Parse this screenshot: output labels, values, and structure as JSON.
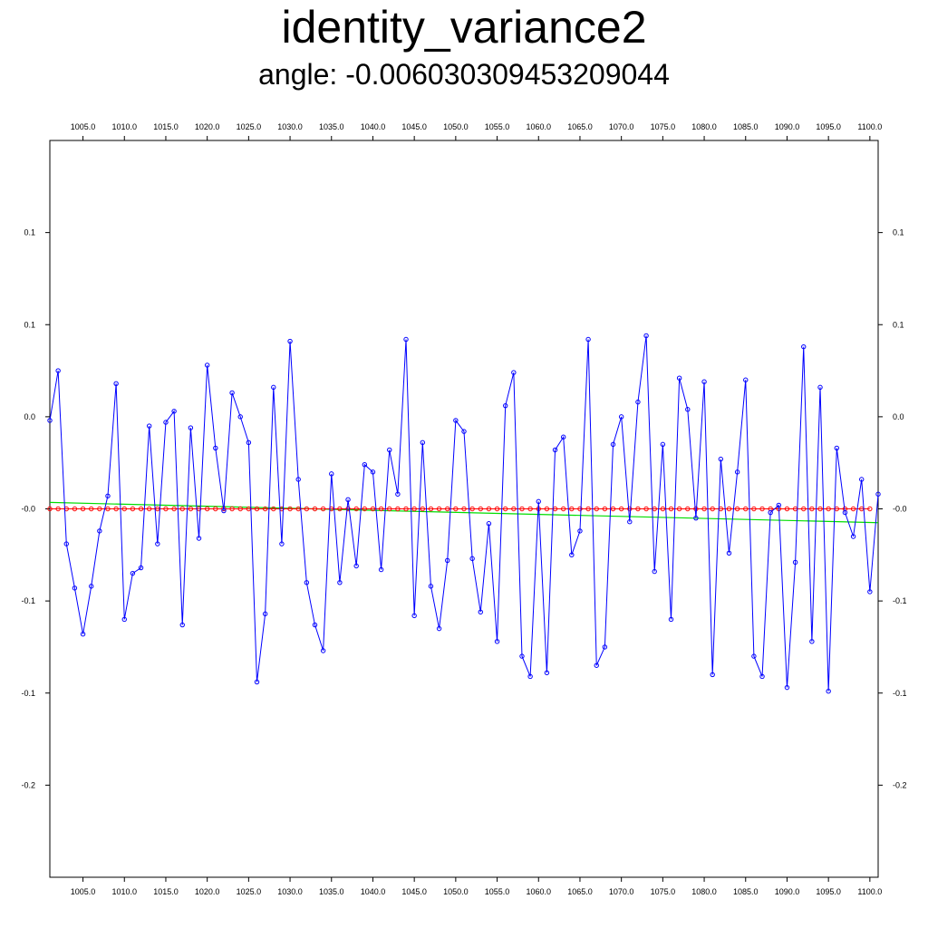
{
  "chart_data": {
    "type": "line",
    "title": "identity_variance2",
    "subtitle": "angle: -0.006030309453209044",
    "xlabel": "",
    "ylabel": "",
    "xlim": [
      1001,
      1101
    ],
    "ylim": [
      -0.25,
      0.15
    ],
    "x_ticks": [
      {
        "value": 1005,
        "label": "1005.0"
      },
      {
        "value": 1010,
        "label": "1010.0"
      },
      {
        "value": 1015,
        "label": "1015.0"
      },
      {
        "value": 1020,
        "label": "1020.0"
      },
      {
        "value": 1025,
        "label": "1025.0"
      },
      {
        "value": 1030,
        "label": "1030.0"
      },
      {
        "value": 1035,
        "label": "1035.0"
      },
      {
        "value": 1040,
        "label": "1040.0"
      },
      {
        "value": 1045,
        "label": "1045.0"
      },
      {
        "value": 1050,
        "label": "1050.0"
      },
      {
        "value": 1055,
        "label": "1055.0"
      },
      {
        "value": 1060,
        "label": "1060.0"
      },
      {
        "value": 1065,
        "label": "1065.0"
      },
      {
        "value": 1070,
        "label": "1070.0"
      },
      {
        "value": 1075,
        "label": "1075.0"
      },
      {
        "value": 1080,
        "label": "1080.0"
      },
      {
        "value": 1085,
        "label": "1085.0"
      },
      {
        "value": 1090,
        "label": "1090.0"
      },
      {
        "value": 1095,
        "label": "1095.0"
      },
      {
        "value": 1100,
        "label": "1100.0"
      }
    ],
    "y_ticks": [
      {
        "value": 0.1,
        "label": "0.1"
      },
      {
        "value": 0.05,
        "label": "0.1"
      },
      {
        "value": 0.0,
        "label": "0.0"
      },
      {
        "value": -0.05,
        "label": "-0.0"
      },
      {
        "value": -0.1,
        "label": "-0.1"
      },
      {
        "value": -0.15,
        "label": "-0.1"
      },
      {
        "value": -0.2,
        "label": "-0.2"
      }
    ],
    "grid": false,
    "series": [
      {
        "color": "#0000ff",
        "marker": "circle",
        "x_start": 1001,
        "x_step": 1,
        "values": [
          -0.002,
          0.025,
          -0.069,
          -0.093,
          -0.118,
          -0.092,
          -0.062,
          -0.043,
          0.018,
          -0.11,
          -0.085,
          -0.082,
          -0.005,
          -0.069,
          -0.003,
          0.003,
          -0.113,
          -0.006,
          -0.066,
          0.028,
          -0.017,
          -0.051,
          0.013,
          0.0,
          -0.014,
          -0.144,
          -0.107,
          0.016,
          -0.069,
          0.041,
          -0.034,
          -0.09,
          -0.113,
          -0.127,
          -0.031,
          -0.09,
          -0.045,
          -0.081,
          -0.026,
          -0.03,
          -0.083,
          -0.018,
          -0.042,
          0.042,
          -0.108,
          -0.014,
          -0.092,
          -0.115,
          -0.078,
          -0.002,
          -0.008,
          -0.077,
          -0.106,
          -0.058,
          -0.122,
          0.006,
          0.024,
          -0.13,
          -0.141,
          -0.046,
          -0.139,
          -0.018,
          -0.011,
          -0.075,
          -0.062,
          0.042,
          -0.135,
          -0.125,
          -0.015,
          0.0,
          -0.057,
          0.008,
          0.044,
          -0.084,
          -0.015,
          -0.11,
          0.021,
          0.004,
          -0.055,
          0.019,
          -0.14,
          -0.023,
          -0.074,
          -0.03,
          0.02,
          -0.13,
          -0.141,
          -0.052,
          -0.048,
          -0.147,
          -0.079,
          0.038,
          -0.122,
          0.016,
          -0.149,
          -0.017,
          -0.052,
          -0.065,
          -0.034,
          -0.095,
          -0.042
        ]
      },
      {
        "color": "#ff0000",
        "marker": "circle",
        "x_start": 1001,
        "x_step": 1,
        "constant": -0.05,
        "count": 100
      },
      {
        "color": "#00dd00",
        "marker": "none",
        "x": [
          1001,
          1101
        ],
        "values": [
          -0.0465,
          -0.0575
        ]
      }
    ]
  }
}
